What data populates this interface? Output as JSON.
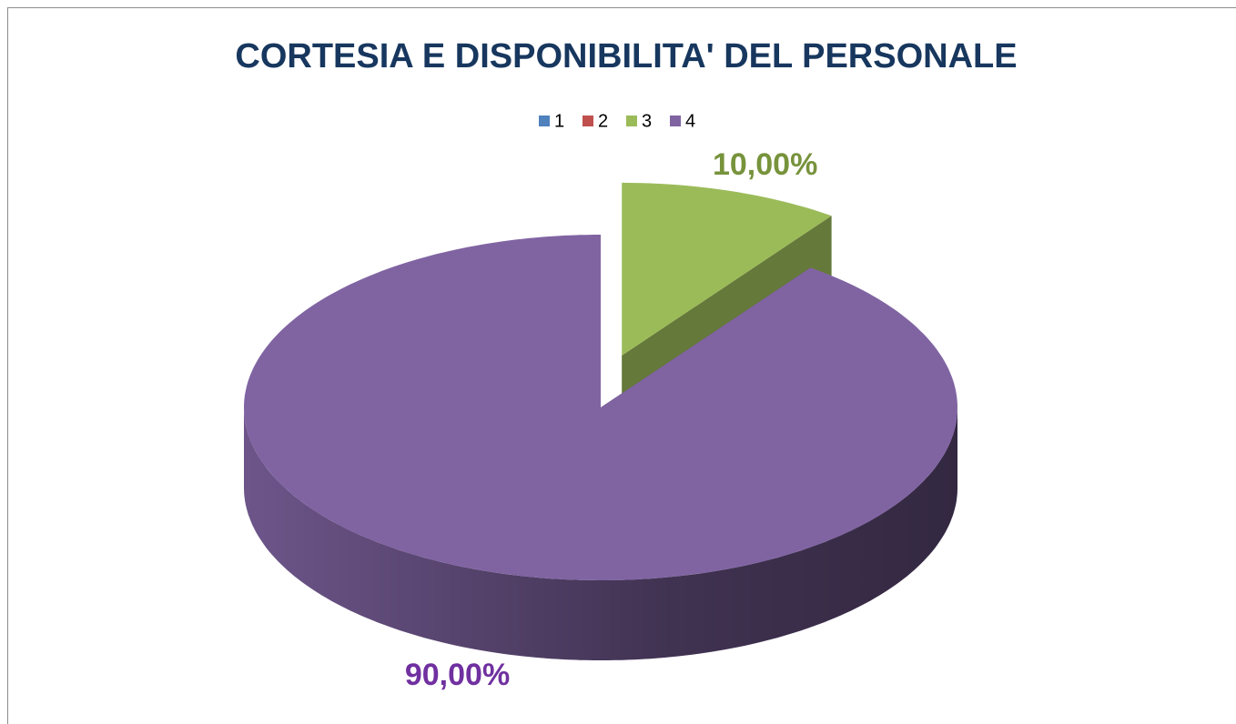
{
  "chart_data": {
    "type": "pie",
    "title": "CORTESIA E DISPONIBILITA' DEL PERSONALE",
    "categories": [
      "1",
      "2",
      "3",
      "4"
    ],
    "values": [
      0,
      0,
      10,
      90
    ],
    "value_labels": [
      null,
      null,
      "10,00%",
      "90,00%"
    ],
    "colors": [
      "#4f81bd",
      "#c0504d",
      "#9bbb59",
      "#8064a2"
    ],
    "label_colors": [
      "#4f81bd",
      "#c0504d",
      "#77933c",
      "#7030a0"
    ],
    "legend": "top"
  }
}
